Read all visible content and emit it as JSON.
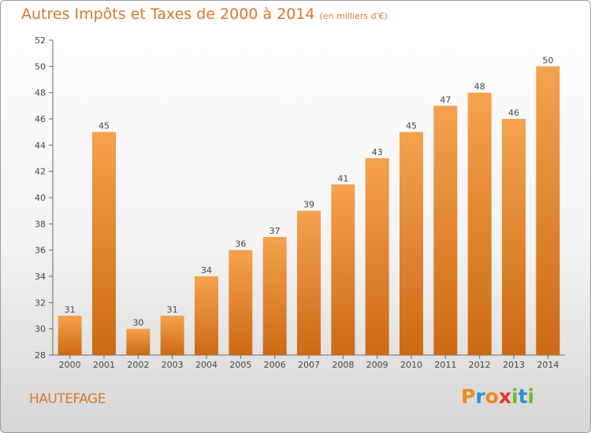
{
  "header": {
    "title": "Autres Impôts et Taxes de 2000 à 2014",
    "subtitle": "(en milliers d'€)"
  },
  "footer": {
    "commune": "HAUTEFAGE",
    "logo_text": "Proxiti",
    "logo_colors": [
      "#f08a1c",
      "#2a8fd6",
      "#f08a1c",
      "#e8342a",
      "#73b72b",
      "#2a8fd6",
      "#73b72b"
    ]
  },
  "chart_data": {
    "type": "bar",
    "categories": [
      "2000",
      "2001",
      "2002",
      "2003",
      "2004",
      "2005",
      "2006",
      "2007",
      "2008",
      "2009",
      "2010",
      "2011",
      "2012",
      "2013",
      "2014"
    ],
    "values": [
      31,
      45,
      30,
      31,
      34,
      36,
      37,
      39,
      41,
      43,
      45,
      47,
      48,
      46,
      50
    ],
    "title": "Autres Impôts et Taxes de 2000 à 2014",
    "ylim": [
      28,
      52
    ],
    "yticks": [
      28,
      30,
      32,
      34,
      36,
      38,
      40,
      42,
      44,
      46,
      48,
      50,
      52
    ],
    "grid": false,
    "bar_colors": {
      "top": "#f5a24e",
      "bottom": "#cc6a14"
    },
    "axis_color": "#666666"
  }
}
